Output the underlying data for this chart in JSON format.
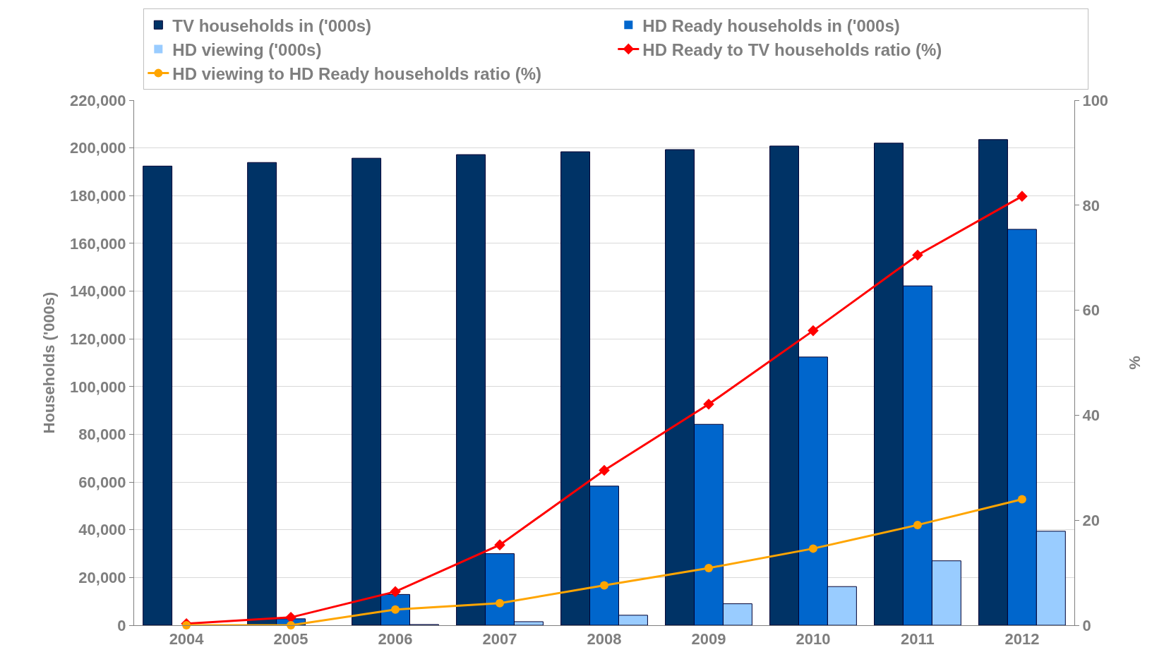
{
  "chart_data": {
    "type": "bar",
    "categories": [
      "2004",
      "2005",
      "2006",
      "2007",
      "2008",
      "2009",
      "2010",
      "2011",
      "2012"
    ],
    "ylabel": "Households ('000s)",
    "y2label": "%",
    "ylim": [
      0,
      220000
    ],
    "yticks": [
      {
        "value": 0,
        "label": "0"
      },
      {
        "value": 20000,
        "label": "20,000"
      },
      {
        "value": 40000,
        "label": "40,000"
      },
      {
        "value": 60000,
        "label": "60,000"
      },
      {
        "value": 80000,
        "label": "80,000"
      },
      {
        "value": 100000,
        "label": "100,000"
      },
      {
        "value": 120000,
        "label": "120,000"
      },
      {
        "value": 140000,
        "label": "140,000"
      },
      {
        "value": 160000,
        "label": "160,000"
      },
      {
        "value": 180000,
        "label": "180,000"
      },
      {
        "value": 200000,
        "label": "200,000"
      },
      {
        "value": 220000,
        "label": "220,000"
      }
    ],
    "y2lim": [
      0,
      100
    ],
    "y2ticks": [
      0,
      20,
      40,
      60,
      80,
      100
    ],
    "grid": "y",
    "legend": "top",
    "series": [
      {
        "name": "TV households in ('000s)",
        "color": "#003366",
        "values": [
          192400,
          193900,
          195700,
          197200,
          198400,
          199300,
          200800,
          202000,
          203500
        ]
      },
      {
        "name": "HD Ready households in ('000s)",
        "color": "#0066cc",
        "values": [
          null,
          2700,
          12900,
          30000,
          58300,
          84200,
          112400,
          142200,
          165900
        ]
      },
      {
        "name": "HD viewing ('000s)",
        "color": "#99ccff",
        "values": [
          0,
          0,
          300,
          1500,
          4200,
          9000,
          16200,
          27000,
          39400
        ]
      },
      {
        "name": "HD Ready to TV households ratio (%)",
        "type": "line",
        "axis": "y2",
        "color": "#ff0000",
        "marker": "diamond",
        "values": [
          0.3,
          1.5,
          6.4,
          15.3,
          29.5,
          42.1,
          56.1,
          70.5,
          81.7
        ]
      },
      {
        "name": "HD viewing to HD Ready households ratio (%)",
        "type": "line",
        "axis": "y2",
        "color": "#ffa500",
        "marker": "circle",
        "values": [
          0,
          0,
          3,
          4.2,
          7.6,
          10.9,
          14.6,
          19.1,
          24
        ]
      }
    ]
  }
}
